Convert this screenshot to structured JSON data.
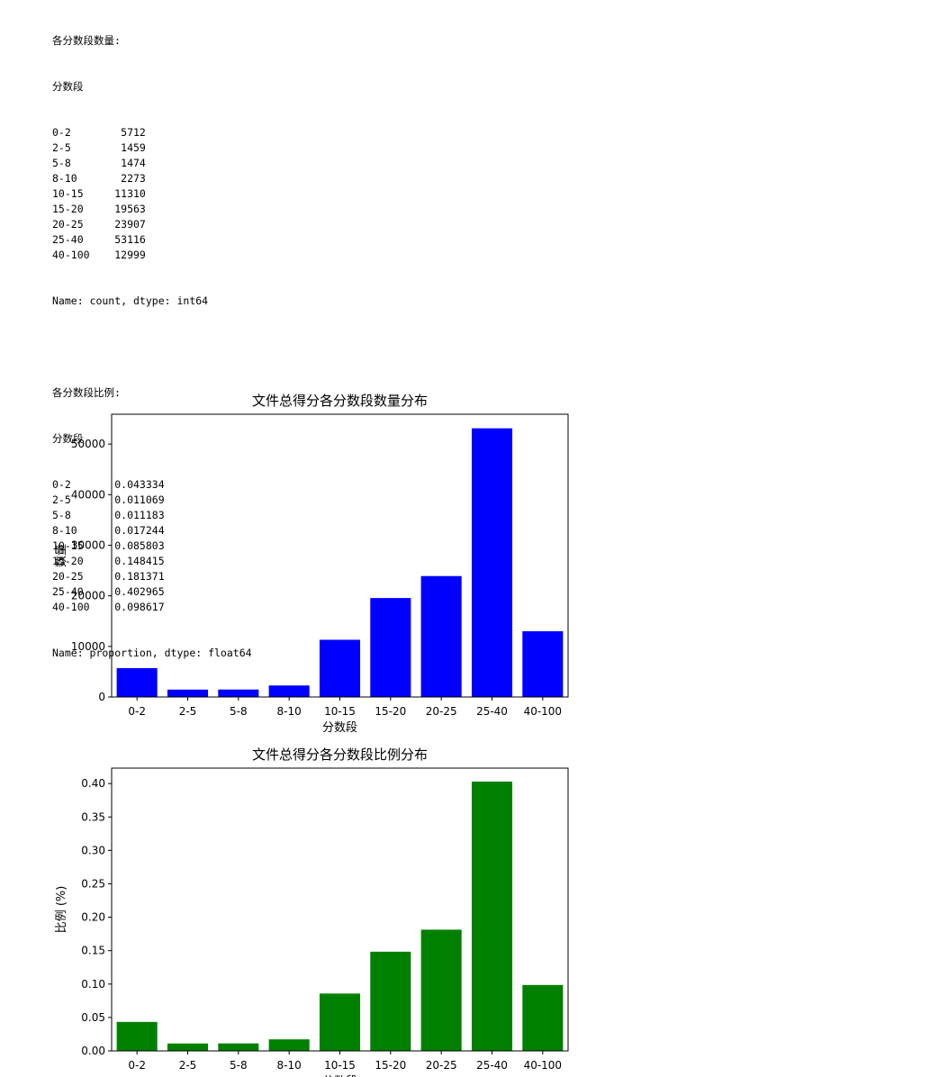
{
  "output": {
    "count_block": {
      "header": "各分数段数量:",
      "index_name": "分数段",
      "rows": [
        {
          "label": "0-2",
          "value": "5712"
        },
        {
          "label": "2-5",
          "value": "1459"
        },
        {
          "label": "5-8",
          "value": "1474"
        },
        {
          "label": "8-10",
          "value": "2273"
        },
        {
          "label": "10-15",
          "value": "11310"
        },
        {
          "label": "15-20",
          "value": "19563"
        },
        {
          "label": "20-25",
          "value": "23907"
        },
        {
          "label": "25-40",
          "value": "53116"
        },
        {
          "label": "40-100",
          "value": "12999"
        }
      ],
      "footer": "Name: count, dtype: int64"
    },
    "proportion_block": {
      "header": "各分数段比例:",
      "index_name": "分数段",
      "rows": [
        {
          "label": "0-2",
          "value": "0.043334"
        },
        {
          "label": "2-5",
          "value": "0.011069"
        },
        {
          "label": "5-8",
          "value": "0.011183"
        },
        {
          "label": "8-10",
          "value": "0.017244"
        },
        {
          "label": "10-15",
          "value": "0.085803"
        },
        {
          "label": "15-20",
          "value": "0.148415"
        },
        {
          "label": "20-25",
          "value": "0.181371"
        },
        {
          "label": "25-40",
          "value": "0.402965"
        },
        {
          "label": "40-100",
          "value": "0.098617"
        }
      ],
      "footer": "Name: proportion, dtype: float64"
    }
  },
  "chart_data": [
    {
      "type": "bar",
      "title": "文件总得分各分数段数量分布",
      "xlabel": "分数段",
      "ylabel": "数量",
      "categories": [
        "0-2",
        "2-5",
        "5-8",
        "8-10",
        "10-15",
        "15-20",
        "20-25",
        "25-40",
        "40-100"
      ],
      "values": [
        5712,
        1459,
        1474,
        2273,
        11310,
        19563,
        23907,
        53116,
        12999
      ],
      "color": "#0000ff",
      "ylim": [
        0,
        55900
      ],
      "yticks": [
        0,
        10000,
        20000,
        30000,
        40000,
        50000
      ],
      "ytick_labels": [
        "0",
        "10000",
        "20000",
        "30000",
        "40000",
        "50000"
      ],
      "grid": false,
      "legend": "none"
    },
    {
      "type": "bar",
      "title": "文件总得分各分数段比例分布",
      "xlabel": "分数段",
      "ylabel": "比例 (%)",
      "categories": [
        "0-2",
        "2-5",
        "5-8",
        "8-10",
        "10-15",
        "15-20",
        "20-25",
        "25-40",
        "40-100"
      ],
      "values": [
        0.043334,
        0.011069,
        0.011183,
        0.017244,
        0.085803,
        0.148415,
        0.181371,
        0.402965,
        0.098617
      ],
      "color": "#008000",
      "ylim": [
        0,
        0.4231
      ],
      "yticks": [
        0,
        0.05,
        0.1,
        0.15,
        0.2,
        0.25,
        0.3,
        0.35,
        0.4
      ],
      "ytick_labels": [
        "0.00",
        "0.05",
        "0.10",
        "0.15",
        "0.20",
        "0.25",
        "0.30",
        "0.35",
        "0.40"
      ],
      "grid": false,
      "legend": "none"
    }
  ]
}
